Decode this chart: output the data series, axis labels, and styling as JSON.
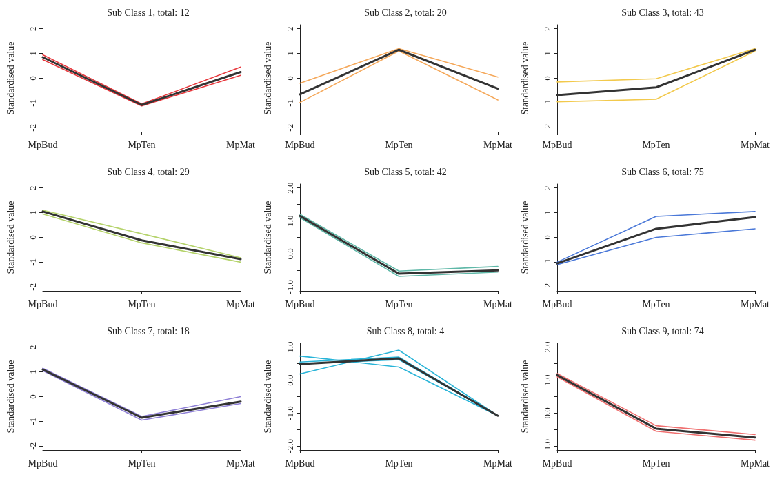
{
  "chart_data": [
    {
      "type": "line",
      "title": "Sub Class 1, total: 12",
      "ylabel": "Standardised value",
      "categories": [
        "MpBud",
        "MpTen",
        "MpMat"
      ],
      "ylim": [
        -2.16,
        2.16
      ],
      "yticks": [
        -2,
        -1,
        0,
        1,
        2
      ],
      "marker": "none",
      "series": [
        {
          "color": "#e8383d",
          "values": [
            0.95,
            -1.04,
            0.45
          ]
        },
        {
          "color": "#e8383d",
          "values": [
            0.75,
            -1.12,
            0.12
          ]
        },
        {
          "color": "#333333",
          "values": [
            0.85,
            -1.08,
            0.25
          ]
        }
      ]
    },
    {
      "type": "line",
      "title": "Sub Class 2, total: 20",
      "ylabel": "Standardised value",
      "categories": [
        "MpBud",
        "MpTen",
        "MpMat"
      ],
      "ylim": [
        -2.16,
        2.16
      ],
      "yticks": [
        -2,
        -1,
        0,
        1,
        2
      ],
      "marker": "none",
      "series": [
        {
          "color": "#f5a85a",
          "values": [
            -0.2,
            1.2,
            0.05
          ]
        },
        {
          "color": "#f5a85a",
          "values": [
            -0.98,
            1.1,
            -0.88
          ]
        },
        {
          "color": "#333333",
          "values": [
            -0.65,
            1.15,
            -0.42
          ]
        }
      ]
    },
    {
      "type": "line",
      "title": "Sub Class 3, total: 43",
      "ylabel": "Standardised value",
      "categories": [
        "MpBud",
        "MpTen",
        "MpMat"
      ],
      "ylim": [
        -2.16,
        2.16
      ],
      "yticks": [
        -2,
        -1,
        0,
        1,
        2
      ],
      "marker": "none",
      "series": [
        {
          "color": "#f2c94c",
          "values": [
            -0.15,
            -0.02,
            1.2
          ]
        },
        {
          "color": "#f2c94c",
          "values": [
            -0.95,
            -0.85,
            1.1
          ]
        },
        {
          "color": "#333333",
          "values": [
            -0.68,
            -0.37,
            1.15
          ]
        }
      ]
    },
    {
      "type": "line",
      "title": "Sub Class 4, total: 29",
      "ylabel": "Standardised value",
      "categories": [
        "MpBud",
        "MpTen",
        "MpMat"
      ],
      "ylim": [
        -2.16,
        2.16
      ],
      "yticks": [
        -2,
        -1,
        0,
        1,
        2
      ],
      "marker": "none",
      "series": [
        {
          "color": "#b5d36b",
          "values": [
            1.1,
            0.15,
            -0.82
          ]
        },
        {
          "color": "#b5d36b",
          "values": [
            0.95,
            -0.22,
            -1.0
          ]
        },
        {
          "color": "#333333",
          "values": [
            1.05,
            -0.12,
            -0.88
          ]
        }
      ]
    },
    {
      "type": "line",
      "title": "Sub Class 5, total: 42",
      "ylabel": "Standardised value",
      "categories": [
        "MpBud",
        "MpTen",
        "MpMat"
      ],
      "ylim": [
        -1.12,
        2.12
      ],
      "yticks": [
        {
          "value": -1,
          "label": "-1.0"
        },
        {
          "value": -0.5,
          "label": null
        },
        {
          "value": 0,
          "label": "0.0"
        },
        {
          "value": 0.5,
          "label": null
        },
        {
          "value": 1,
          "label": "1.0"
        },
        {
          "value": 1.5,
          "label": null
        },
        {
          "value": 2,
          "label": "2.0"
        }
      ],
      "marker": "none",
      "series": [
        {
          "color": "#5fb8a8",
          "values": [
            1.2,
            -0.52,
            -0.38
          ]
        },
        {
          "color": "#5fb8a8",
          "values": [
            1.1,
            -0.68,
            -0.55
          ]
        },
        {
          "color": "#333333",
          "values": [
            1.15,
            -0.6,
            -0.5
          ]
        }
      ]
    },
    {
      "type": "line",
      "title": "Sub Class 6, total: 75",
      "ylabel": "Standardised value",
      "categories": [
        "MpBud",
        "MpTen",
        "MpMat"
      ],
      "ylim": [
        -2.16,
        2.16
      ],
      "yticks": [
        -2,
        -1,
        0,
        1,
        2
      ],
      "marker": "none",
      "series": [
        {
          "color": "#4a78d8",
          "values": [
            -1.0,
            0.85,
            1.05
          ]
        },
        {
          "color": "#4a78d8",
          "values": [
            -1.1,
            0.0,
            0.35
          ]
        },
        {
          "color": "#333333",
          "values": [
            -1.05,
            0.35,
            0.82
          ]
        }
      ]
    },
    {
      "type": "line",
      "title": "Sub Class 7, total: 18",
      "ylabel": "Standardised value",
      "categories": [
        "MpBud",
        "MpTen",
        "MpMat"
      ],
      "ylim": [
        -2.16,
        2.16
      ],
      "yticks": [
        -2,
        -1,
        0,
        1,
        2
      ],
      "marker": "none",
      "series": [
        {
          "color": "#8e7fd6",
          "values": [
            1.15,
            -0.8,
            0.0
          ]
        },
        {
          "color": "#8e7fd6",
          "values": [
            1.05,
            -0.95,
            -0.28
          ]
        },
        {
          "color": "#333333",
          "values": [
            1.1,
            -0.85,
            -0.2
          ]
        }
      ]
    },
    {
      "type": "line",
      "title": "Sub Class 8, total: 4",
      "ylabel": "Standardised value",
      "categories": [
        "MpBud",
        "MpTen",
        "MpMat"
      ],
      "ylim": [
        -2.12,
        1.12
      ],
      "yticks": [
        {
          "value": -2,
          "label": "-2.0"
        },
        {
          "value": -1.5,
          "label": null
        },
        {
          "value": -1,
          "label": "-1.0"
        },
        {
          "value": -0.5,
          "label": null
        },
        {
          "value": 0,
          "label": "0.0"
        },
        {
          "value": 0.5,
          "label": null
        },
        {
          "value": 1,
          "label": "1.0"
        }
      ],
      "marker": "none",
      "series": [
        {
          "color": "#28b4d8",
          "values": [
            0.73,
            0.4,
            -1.08
          ]
        },
        {
          "color": "#28b4d8",
          "values": [
            0.19,
            0.91,
            -1.08
          ]
        },
        {
          "color": "#28b4d8",
          "values": [
            0.5,
            0.62,
            -1.08
          ]
        },
        {
          "color": "#28b4d8",
          "values": [
            0.55,
            0.7,
            -1.08
          ]
        },
        {
          "color": "#333333",
          "values": [
            0.49,
            0.66,
            -1.08
          ]
        }
      ]
    },
    {
      "type": "line",
      "title": "Sub Class 9, total: 74",
      "ylabel": "Standardised value",
      "categories": [
        "MpBud",
        "MpTen",
        "MpMat"
      ],
      "ylim": [
        -1.12,
        2.12
      ],
      "yticks": [
        {
          "value": -1,
          "label": "-1.0"
        },
        {
          "value": -0.5,
          "label": null
        },
        {
          "value": 0,
          "label": "0.0"
        },
        {
          "value": 0.5,
          "label": null
        },
        {
          "value": 1,
          "label": "1.0"
        },
        {
          "value": 1.5,
          "label": null
        },
        {
          "value": 2,
          "label": "2.0"
        }
      ],
      "marker": "none",
      "series": [
        {
          "color": "#f07070",
          "values": [
            1.2,
            -0.38,
            -0.65
          ]
        },
        {
          "color": "#f07070",
          "values": [
            1.1,
            -0.55,
            -0.82
          ]
        },
        {
          "color": "#333333",
          "values": [
            1.15,
            -0.47,
            -0.74
          ]
        }
      ]
    }
  ]
}
